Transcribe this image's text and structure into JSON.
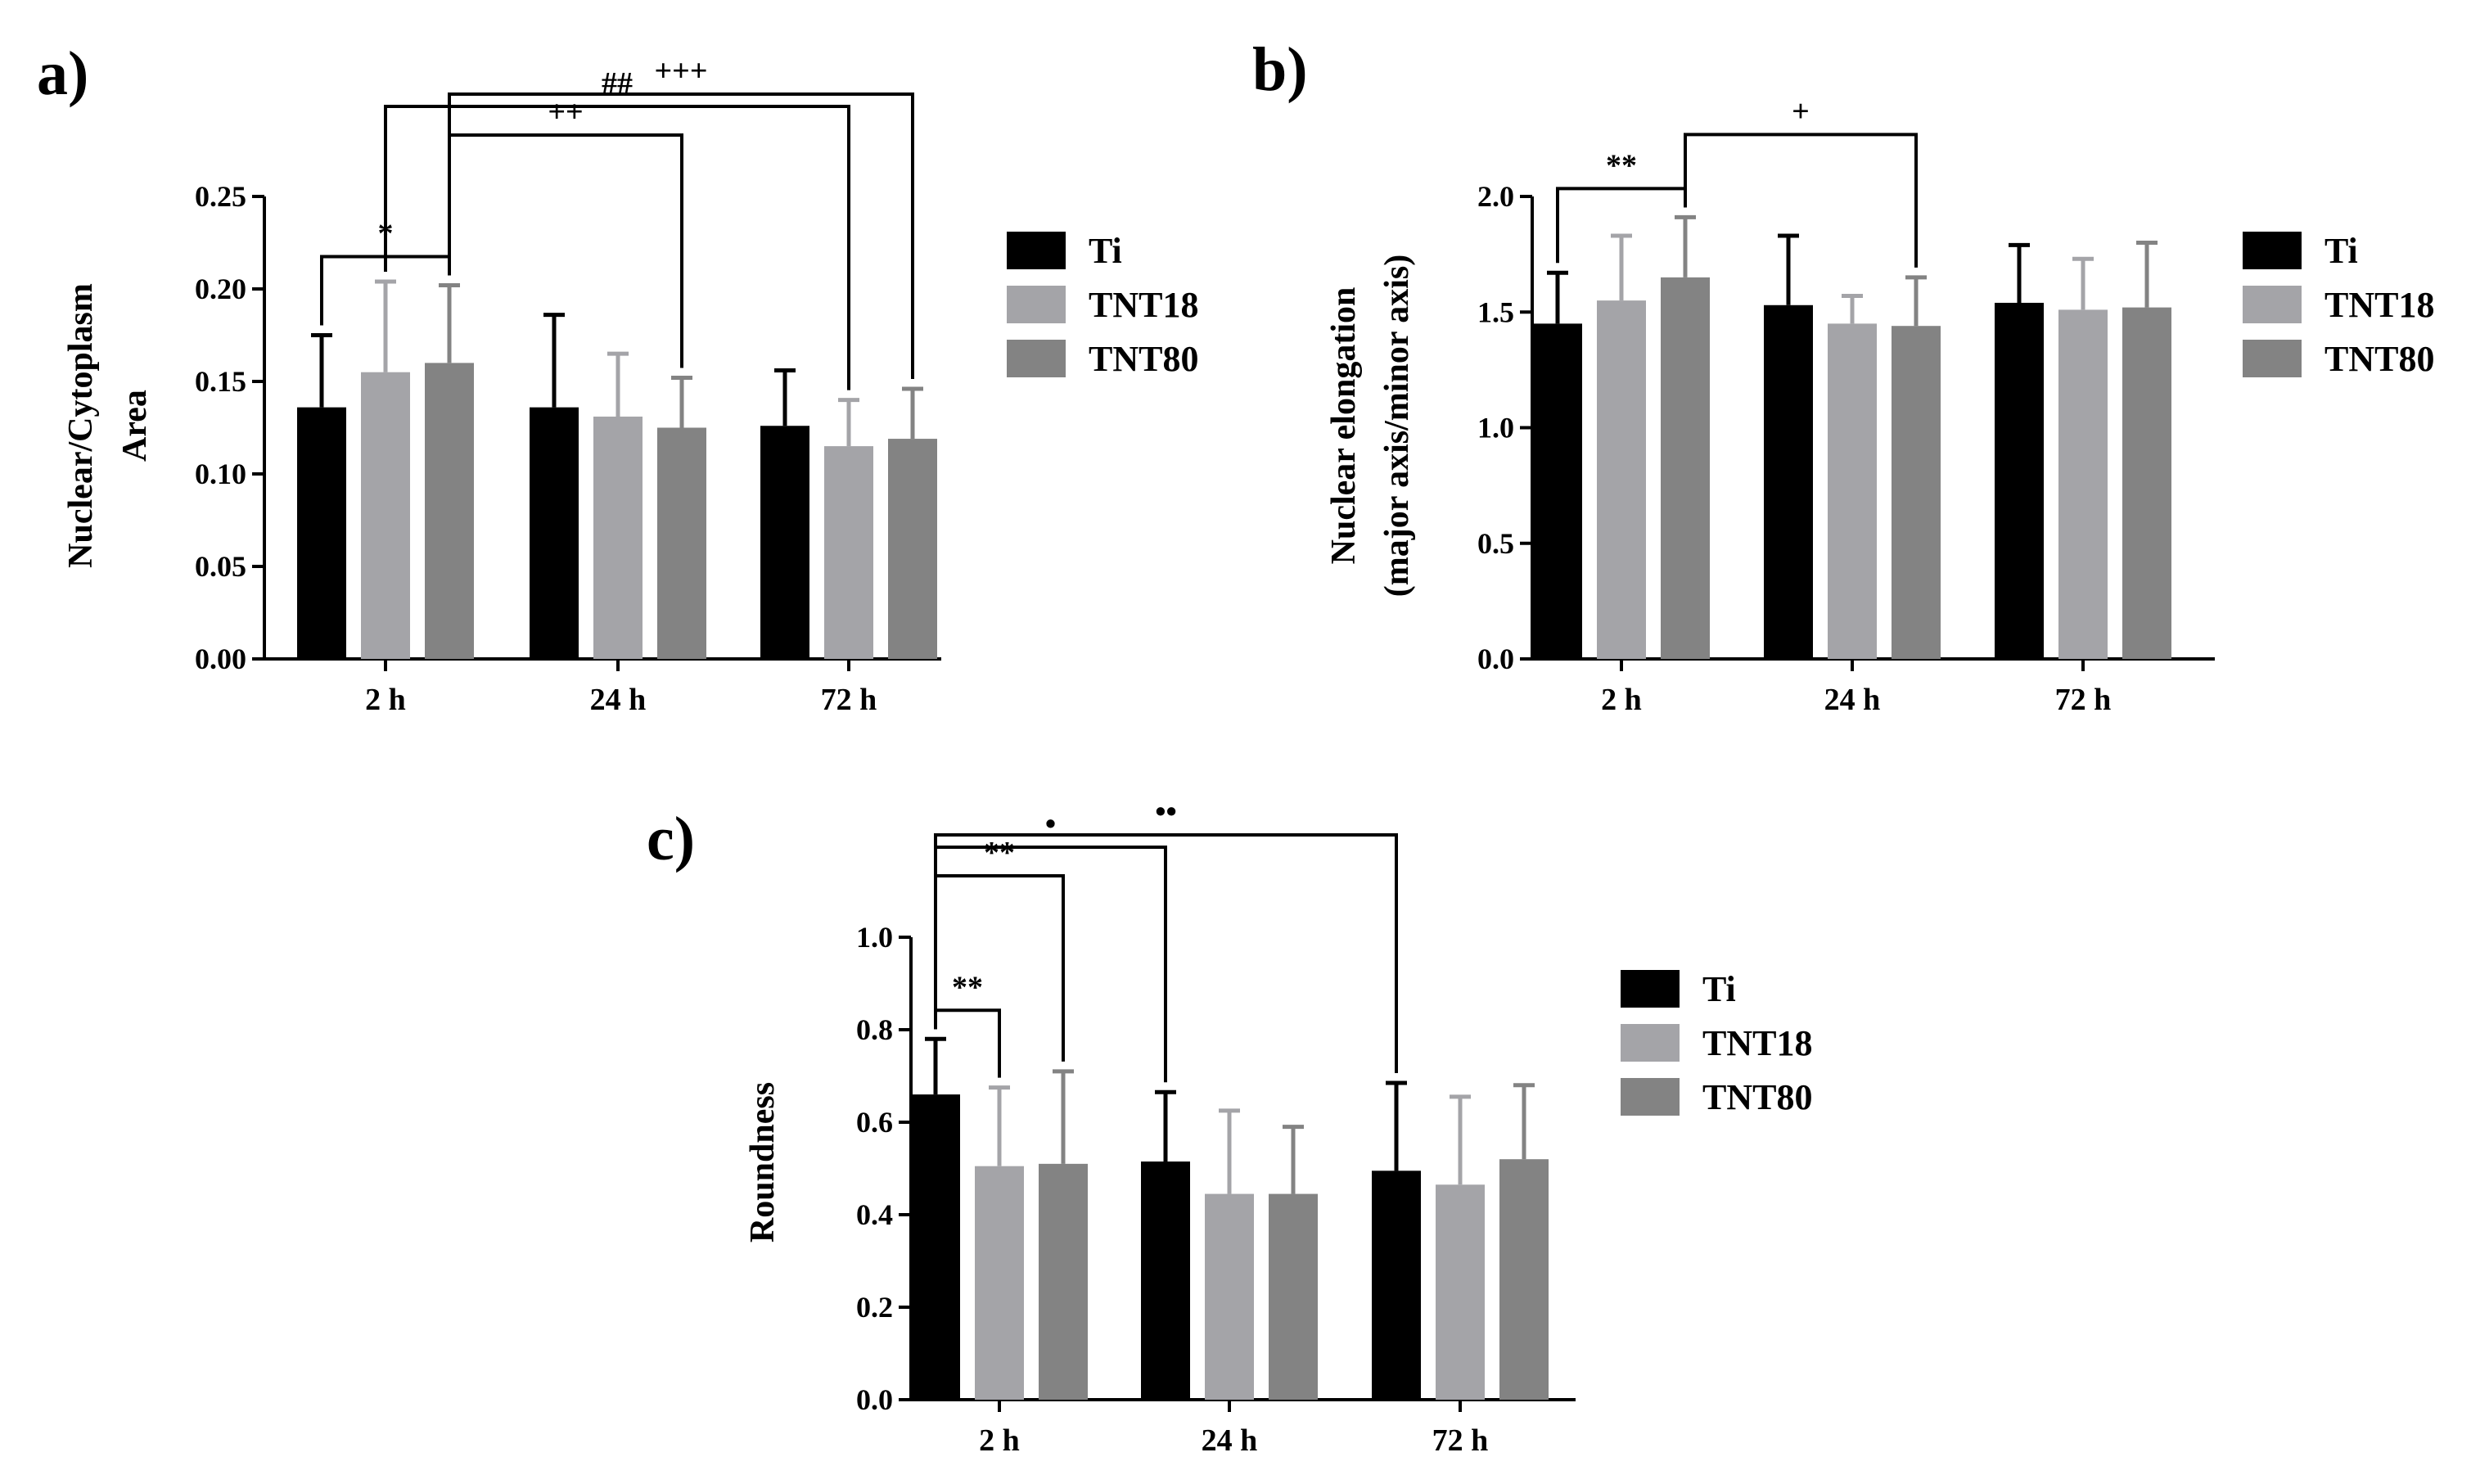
{
  "legend": [
    "Ti",
    "TNT18",
    "TNT80"
  ],
  "colors": {
    "Ti": "#000000",
    "TNT18": "#a4a4a8",
    "TNT80": "#838383"
  },
  "chart_data": [
    {
      "panel": "a)",
      "type": "bar",
      "categories": [
        "2 h",
        "24 h",
        "72 h"
      ],
      "ylabel": [
        "Nuclear/Cytoplasm",
        "Area"
      ],
      "ylim": [
        0,
        0.25
      ],
      "yticks": [
        "0.00",
        "0.05",
        "0.10",
        "0.15",
        "0.20",
        "0.25"
      ],
      "series": [
        {
          "name": "Ti",
          "values": [
            0.136,
            0.136,
            0.126
          ],
          "errors": [
            0.039,
            0.05,
            0.03
          ]
        },
        {
          "name": "TNT18",
          "values": [
            0.155,
            0.131,
            0.115
          ],
          "errors": [
            0.049,
            0.034,
            0.025
          ]
        },
        {
          "name": "TNT80",
          "values": [
            0.16,
            0.125,
            0.119
          ],
          "errors": [
            0.042,
            0.027,
            0.027
          ]
        }
      ],
      "significance": [
        {
          "label": "*",
          "from": [
            0,
            0
          ],
          "to": [
            0,
            2
          ]
        },
        {
          "label": "++",
          "from": [
            0,
            2
          ],
          "to": [
            1,
            2
          ]
        },
        {
          "label": "##",
          "from": [
            0,
            1
          ],
          "to": [
            2,
            1
          ]
        },
        {
          "label": "+++",
          "from": [
            0,
            2
          ],
          "to": [
            2,
            2
          ]
        }
      ]
    },
    {
      "panel": "b)",
      "type": "bar",
      "categories": [
        "2 h",
        "24 h",
        "72 h"
      ],
      "ylabel": [
        "Nuclear elongation",
        "(major axis/minor axis)"
      ],
      "ylim": [
        0,
        2.0
      ],
      "yticks": [
        "0.0",
        "0.5",
        "1.0",
        "1.5",
        "2.0"
      ],
      "series": [
        {
          "name": "Ti",
          "values": [
            1.45,
            1.53,
            1.54
          ],
          "errors": [
            0.22,
            0.3,
            0.25
          ]
        },
        {
          "name": "TNT18",
          "values": [
            1.55,
            1.45,
            1.51
          ],
          "errors": [
            0.28,
            0.12,
            0.22
          ]
        },
        {
          "name": "TNT80",
          "values": [
            1.65,
            1.44,
            1.52
          ],
          "errors": [
            0.26,
            0.21,
            0.28
          ]
        }
      ],
      "significance": [
        {
          "label": "**",
          "from": [
            0,
            0
          ],
          "to": [
            0,
            2
          ]
        },
        {
          "label": "+",
          "from": [
            0,
            2
          ],
          "to": [
            1,
            2
          ]
        }
      ]
    },
    {
      "panel": "c)",
      "type": "bar",
      "categories": [
        "2 h",
        "24 h",
        "72 h"
      ],
      "ylabel": [
        "Roundness"
      ],
      "ylim": [
        0,
        1.0
      ],
      "yticks": [
        "0.0",
        "0.2",
        "0.4",
        "0.6",
        "0.8",
        "1.0"
      ],
      "series": [
        {
          "name": "Ti",
          "values": [
            0.66,
            0.515,
            0.495
          ],
          "errors": [
            0.12,
            0.15,
            0.19
          ]
        },
        {
          "name": "TNT18",
          "values": [
            0.505,
            0.445,
            0.465
          ],
          "errors": [
            0.17,
            0.18,
            0.19
          ]
        },
        {
          "name": "TNT80",
          "values": [
            0.51,
            0.445,
            0.52
          ],
          "errors": [
            0.2,
            0.145,
            0.16
          ]
        }
      ],
      "significance": [
        {
          "label": "**",
          "from": [
            0,
            0
          ],
          "to": [
            0,
            1
          ]
        },
        {
          "label": "**",
          "from": [
            0,
            0
          ],
          "to": [
            0,
            2
          ]
        },
        {
          "label": "•",
          "from": [
            0,
            0
          ],
          "to": [
            1,
            0
          ]
        },
        {
          "label": "••",
          "from": [
            0,
            0
          ],
          "to": [
            2,
            0
          ]
        }
      ]
    }
  ]
}
